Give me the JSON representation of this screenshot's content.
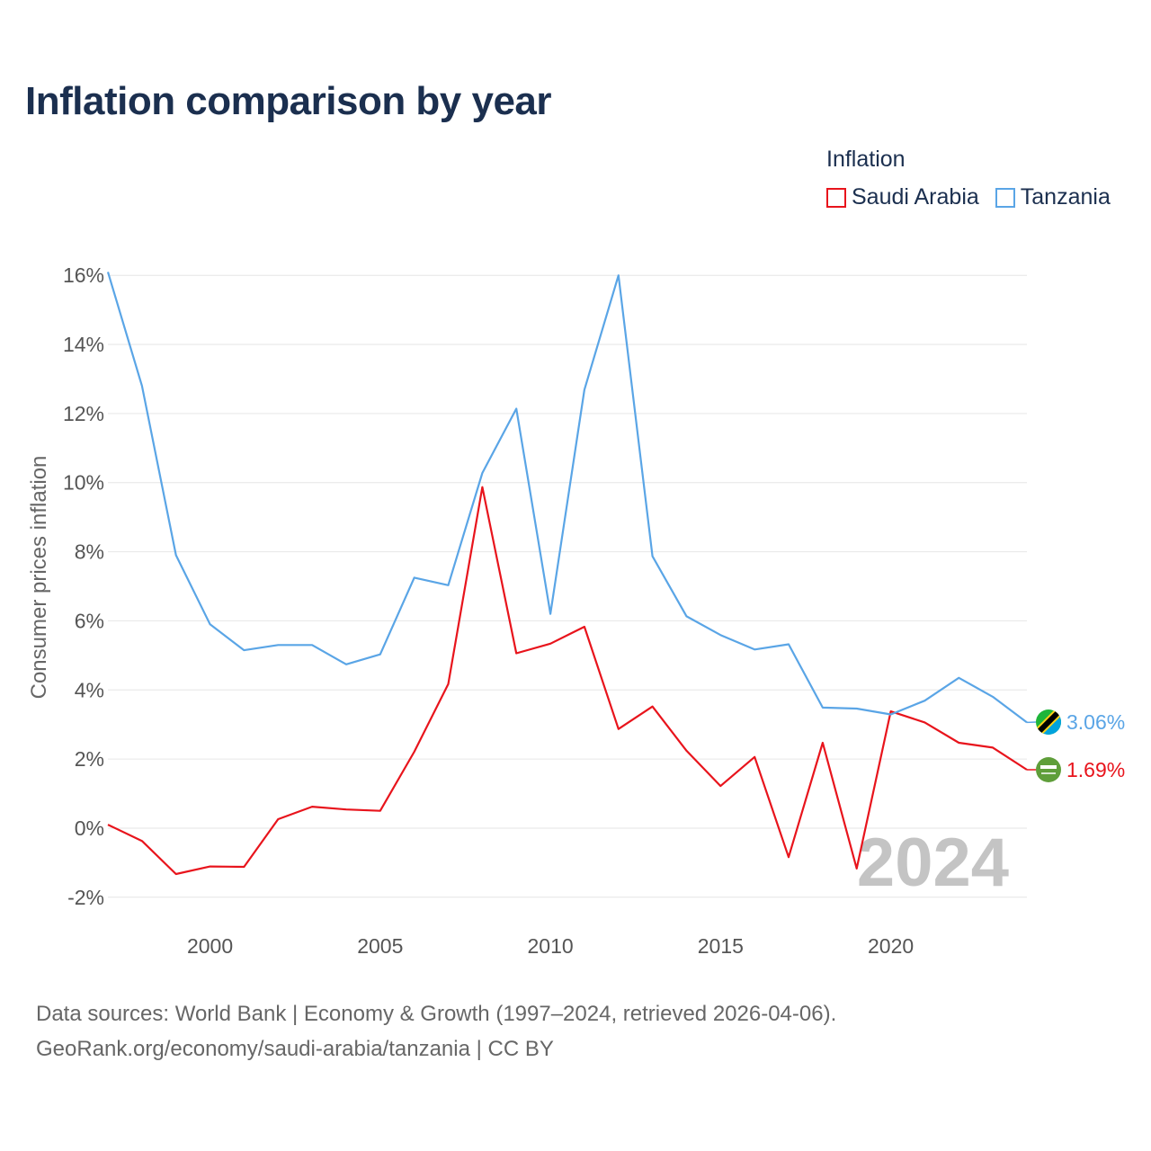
{
  "title": "Inflation comparison by year",
  "legend": {
    "title": "Inflation",
    "items": [
      {
        "name": "Saudi Arabia",
        "color": "#e8141c"
      },
      {
        "name": "Tanzania",
        "color": "#5aa5e6"
      }
    ]
  },
  "source": {
    "line1": "Data sources: World Bank | Economy & Growth (1997–2024, retrieved 2026-04-06).",
    "line2": "GeoRank.org/economy/saudi-arabia/tanzania | CC BY"
  },
  "chart_data": {
    "type": "line",
    "title": "Inflation comparison by year",
    "xlabel": "",
    "ylabel": "Consumer prices inflation",
    "x": [
      1997,
      1998,
      1999,
      2000,
      2001,
      2002,
      2003,
      2004,
      2005,
      2006,
      2007,
      2008,
      2009,
      2010,
      2011,
      2012,
      2013,
      2014,
      2015,
      2016,
      2017,
      2018,
      2019,
      2020,
      2021,
      2022,
      2023,
      2024
    ],
    "xlim": [
      1997,
      2024
    ],
    "xticks": [
      2000,
      2005,
      2010,
      2015,
      2020
    ],
    "ylim": [
      -2.5,
      16.5
    ],
    "yticks": [
      -2,
      0,
      2,
      4,
      6,
      8,
      10,
      12,
      14,
      16
    ],
    "ytick_labels": [
      "-2%",
      "0%",
      "2%",
      "4%",
      "6%",
      "8%",
      "10%",
      "12%",
      "14%",
      "16%"
    ],
    "grid": true,
    "legend_position": "top-right",
    "watermark_year": "2024",
    "series": [
      {
        "name": "Saudi Arabia",
        "color": "#e8141c",
        "icon": "saudi-arabia-flag-icon",
        "end_label": "1.69%",
        "values": [
          0.1,
          -0.37,
          -1.33,
          -1.11,
          -1.12,
          0.26,
          0.62,
          0.54,
          0.5,
          2.21,
          4.17,
          9.87,
          5.06,
          5.34,
          5.83,
          2.87,
          3.52,
          2.24,
          1.22,
          2.06,
          -0.84,
          2.47,
          -1.17,
          3.38,
          3.06,
          2.47,
          2.33,
          1.69
        ]
      },
      {
        "name": "Tanzania",
        "color": "#5aa5e6",
        "icon": "tanzania-flag-icon",
        "end_label": "3.06%",
        "values": [
          16.1,
          12.8,
          7.9,
          5.9,
          5.15,
          5.3,
          5.3,
          4.74,
          5.03,
          7.25,
          7.03,
          10.28,
          12.14,
          6.2,
          12.69,
          16.0,
          7.87,
          6.13,
          5.59,
          5.17,
          5.32,
          3.49,
          3.46,
          3.29,
          3.69,
          4.35,
          3.8,
          3.06
        ]
      }
    ]
  }
}
